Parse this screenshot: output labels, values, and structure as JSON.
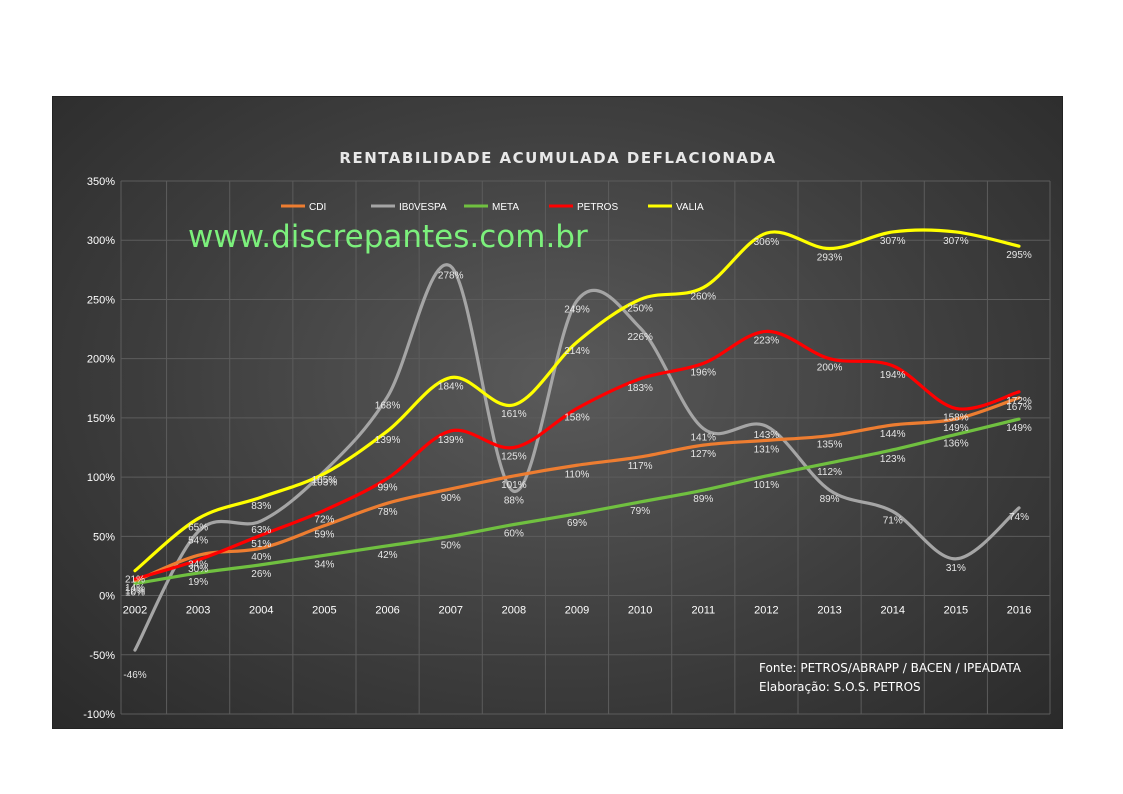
{
  "watermark": "www.discrepantes.com.br",
  "source_lines": [
    "Fonte: PETROS/ABRAPP / BACEN / IPEADATA",
    "Elaboração: S.O.S. PETROS"
  ],
  "chart_data": {
    "type": "line",
    "title": "RENTABILIDADE  ACUMULADA  DEFLACIONADA",
    "xlabel": "",
    "ylabel": "",
    "ylim": [
      -100,
      350
    ],
    "y_tick_step": 50,
    "y_tick_labels": [
      "-100%",
      "-50%",
      "0%",
      "50%",
      "100%",
      "150%",
      "200%",
      "250%",
      "300%",
      "350%"
    ],
    "categories": [
      "2002",
      "2003",
      "2004",
      "2005",
      "2006",
      "2007",
      "2008",
      "2009",
      "2010",
      "2011",
      "2012",
      "2013",
      "2014",
      "2015",
      "2016"
    ],
    "grid": true,
    "legend_position": "top",
    "series": [
      {
        "name": "CDI",
        "color": "#ed7d31",
        "values": [
          12,
          34,
          40,
          59,
          78,
          90,
          101,
          110,
          117,
          127,
          131,
          135,
          144,
          149,
          167
        ],
        "labels": [
          "12%",
          "34%",
          "40%",
          "59%",
          "78%",
          "90%",
          "101%",
          "110%",
          "117%",
          "127%",
          "131%",
          "135%",
          "144%",
          "149%",
          "167%"
        ]
      },
      {
        "name": "IB0VESPA",
        "color": "#a5a5a5",
        "values": [
          -46,
          54,
          63,
          105,
          168,
          278,
          88,
          249,
          226,
          141,
          143,
          89,
          71,
          31,
          74
        ],
        "labels": [
          "-46%",
          "54%",
          "63%",
          "105%",
          "168%",
          "278%",
          "88%",
          "249%",
          "226%",
          "141%",
          "143%",
          "89%",
          "71%",
          "31%",
          "74%"
        ]
      },
      {
        "name": "META",
        "color": "#70c040",
        "values": [
          10,
          19,
          26,
          34,
          42,
          50,
          60,
          69,
          79,
          89,
          101,
          112,
          123,
          136,
          149
        ],
        "labels": [
          "10%",
          "19%",
          "26%",
          "34%",
          "42%",
          "50%",
          "60%",
          "69%",
          "79%",
          "89%",
          "101%",
          "112%",
          "123%",
          "136%",
          "149%"
        ]
      },
      {
        "name": "PETROS",
        "color": "#ff0000",
        "values": [
          14,
          30,
          51,
          72,
          99,
          139,
          125,
          158,
          183,
          196,
          223,
          200,
          194,
          158,
          172
        ],
        "labels": [
          "14%",
          "30%",
          "51%",
          "72%",
          "99%",
          "139%",
          "125%",
          "158%",
          "183%",
          "196%",
          "223%",
          "200%",
          "194%",
          "158%",
          "172%"
        ]
      },
      {
        "name": "VALIA",
        "color": "#ffff00",
        "values": [
          21,
          65,
          83,
          103,
          139,
          184,
          161,
          214,
          250,
          260,
          306,
          293,
          307,
          307,
          295
        ],
        "labels": [
          "21%",
          "65%",
          "83%",
          "103%",
          "139%",
          "184%",
          "161%",
          "214%",
          "250%",
          "260%",
          "306%",
          "293%",
          "307%",
          "307%",
          "295%"
        ]
      }
    ]
  }
}
